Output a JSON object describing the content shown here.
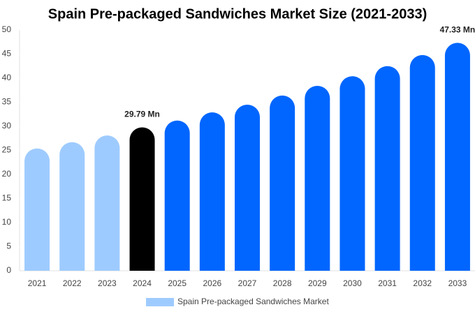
{
  "chart_data": {
    "type": "bar",
    "title": "Spain Pre-packaged Sandwiches Market Size (2021-2033)",
    "categories": [
      "2021",
      "2022",
      "2023",
      "2024",
      "2025",
      "2026",
      "2027",
      "2028",
      "2029",
      "2030",
      "2031",
      "2032",
      "2033"
    ],
    "series": [
      {
        "name": "Spain Pre-packaged Sandwiches Market",
        "color": "#9ecbff",
        "colors": [
          "#9ecbff",
          "#9ecbff",
          "#9ecbff",
          "#000000",
          "#0066ff",
          "#0066ff",
          "#0066ff",
          "#0066ff",
          "#0066ff",
          "#0066ff",
          "#0066ff",
          "#0066ff",
          "#0066ff"
        ],
        "values": [
          25.4,
          26.7,
          28.1,
          29.79,
          31.2,
          32.9,
          34.5,
          36.4,
          38.4,
          40.4,
          42.5,
          44.8,
          47.33
        ],
        "value_labels": [
          null,
          null,
          null,
          "29.79 Mn",
          null,
          null,
          null,
          null,
          null,
          null,
          null,
          null,
          "47.33 Mn"
        ]
      }
    ],
    "ylim": [
      0,
      50
    ],
    "yticks": [
      0,
      5,
      10,
      15,
      20,
      25,
      30,
      35,
      40,
      45,
      50
    ],
    "grid": false,
    "legend": "bottom"
  }
}
